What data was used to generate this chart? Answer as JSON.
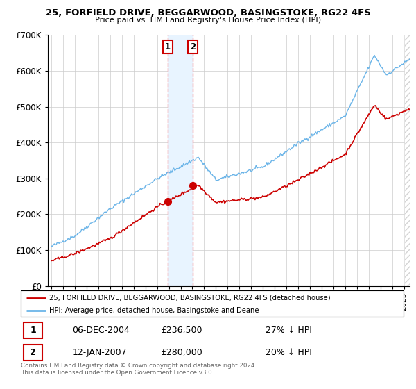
{
  "title1": "25, FORFIELD DRIVE, BEGGARWOOD, BASINGSTOKE, RG22 4FS",
  "title2": "Price paid vs. HM Land Registry's House Price Index (HPI)",
  "legend_house": "25, FORFIELD DRIVE, BEGGARWOOD, BASINGSTOKE, RG22 4FS (detached house)",
  "legend_hpi": "HPI: Average price, detached house, Basingstoke and Deane",
  "footer": "Contains HM Land Registry data © Crown copyright and database right 2024.\nThis data is licensed under the Open Government Licence v3.0.",
  "sale1_date": "06-DEC-2004",
  "sale1_price": "£236,500",
  "sale1_hpi": "27% ↓ HPI",
  "sale1_x": 2004.92,
  "sale1_y": 236500,
  "sale2_date": "12-JAN-2007",
  "sale2_price": "£280,000",
  "sale2_hpi": "20% ↓ HPI",
  "sale2_x": 2007.04,
  "sale2_y": 280000,
  "hpi_color": "#6ab4e8",
  "price_color": "#cc0000",
  "vline_color": "#ff8888",
  "shade_color": "#e8f4ff",
  "ylim": [
    0,
    700000
  ],
  "xlim_start": 1994.7,
  "xlim_end": 2025.5,
  "yticks": [
    0,
    100000,
    200000,
    300000,
    400000,
    500000,
    600000,
    700000
  ],
  "xticks": [
    1995,
    1996,
    1997,
    1998,
    1999,
    2000,
    2001,
    2002,
    2003,
    2004,
    2005,
    2006,
    2007,
    2008,
    2009,
    2010,
    2011,
    2012,
    2013,
    2014,
    2015,
    2016,
    2017,
    2018,
    2019,
    2020,
    2021,
    2022,
    2023,
    2024,
    2025
  ]
}
